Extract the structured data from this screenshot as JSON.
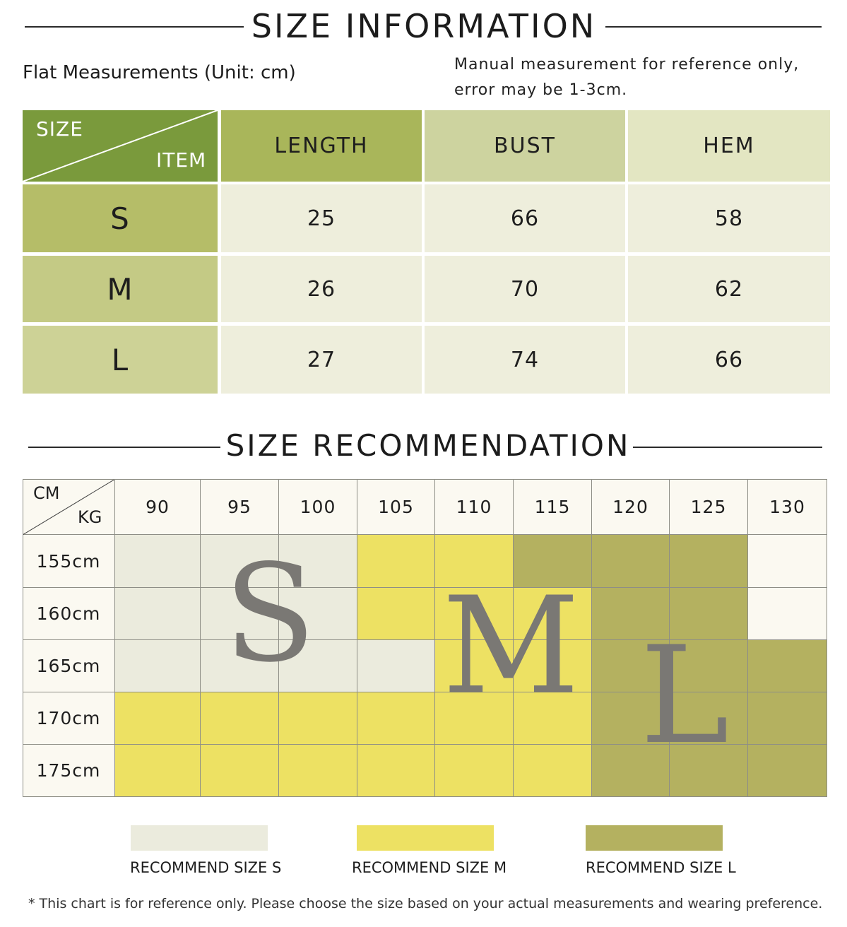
{
  "size_info": {
    "title": "SIZE INFORMATION",
    "subtitle": "Flat Measurements (Unit: cm)",
    "note_line1": "Manual measurement for reference only,",
    "note_line2": "error may be 1-3cm.",
    "corner_top": "SIZE",
    "corner_bottom": "ITEM",
    "columns": [
      "LENGTH",
      "BUST",
      "HEM"
    ],
    "rows": [
      {
        "size": "S",
        "values": [
          "25",
          "66",
          "58"
        ]
      },
      {
        "size": "M",
        "values": [
          "26",
          "70",
          "62"
        ]
      },
      {
        "size": "L",
        "values": [
          "27",
          "74",
          "66"
        ]
      }
    ],
    "colors": {
      "corner": "#7a9a3c",
      "length_header": "#a9b65a",
      "bust_header": "#cdd39f",
      "hem_header": "#e3e6c2",
      "size_cells": [
        "#b5bd68",
        "#c4ca85",
        "#cdd296"
      ],
      "value_cells": "#eeeedc"
    }
  },
  "size_rec": {
    "title": "SIZE RECOMMENDATION",
    "corner_top": "CM",
    "corner_bottom": "KG",
    "weights": [
      "90",
      "95",
      "100",
      "105",
      "110",
      "115",
      "120",
      "125",
      "130"
    ],
    "heights": [
      "155cm",
      "160cm",
      "165cm",
      "170cm",
      "175cm"
    ],
    "grid": [
      [
        "S",
        "S",
        "S",
        "M",
        "M",
        "L",
        "L",
        "L",
        ""
      ],
      [
        "S",
        "S",
        "S",
        "M",
        "M",
        "M",
        "L",
        "L",
        ""
      ],
      [
        "S",
        "S",
        "S",
        "S",
        "M",
        "M",
        "L",
        "L",
        "L"
      ],
      [
        "M",
        "M",
        "M",
        "M",
        "M",
        "M",
        "L",
        "L",
        "L"
      ],
      [
        "M",
        "M",
        "M",
        "M",
        "M",
        "M",
        "L",
        "L",
        "L"
      ]
    ],
    "big_letters": [
      "S",
      "M",
      "L"
    ],
    "colors": {
      "S": "#ebebdd",
      "M": "#ede163",
      "L": "#b4b160",
      "none": "#fbf9f1"
    },
    "legend": [
      {
        "key": "S",
        "label": "RECOMMEND SIZE S"
      },
      {
        "key": "M",
        "label": "RECOMMEND SIZE M"
      },
      {
        "key": "L",
        "label": "RECOMMEND SIZE L"
      }
    ]
  },
  "footer": "* This chart is for reference only. Please choose the size based on your actual measurements and wearing preference."
}
